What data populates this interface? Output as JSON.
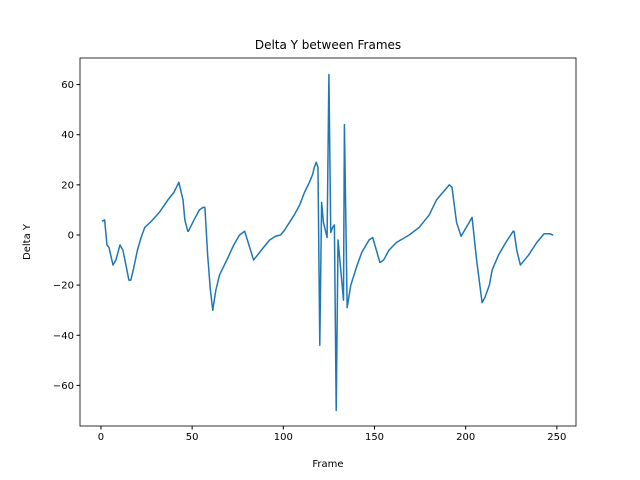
{
  "chart_data": {
    "type": "line",
    "title": "Delta Y between Frames",
    "x_label": "Frame",
    "y_label": "Delta Y",
    "x": [
      0.5,
      2,
      3.3,
      4.4,
      6.6,
      8.2,
      10.4,
      12,
      13.7,
      15.3,
      16.4,
      18,
      20,
      22,
      24,
      27,
      32,
      36.7,
      40,
      42.7,
      45,
      46,
      47.6,
      48,
      51,
      54,
      56,
      57,
      58.5,
      60,
      61.3,
      63,
      65,
      69,
      72.8,
      76,
      78.8,
      82,
      83.7,
      88,
      92.5,
      95.7,
      98.5,
      100.7,
      106,
      109,
      111.6,
      114.3,
      116,
      117,
      118,
      119,
      120,
      121,
      122,
      124,
      125,
      126,
      127,
      128,
      129,
      130,
      133,
      133.5,
      135,
      137,
      140.5,
      143,
      147,
      149,
      151,
      153,
      155,
      158,
      162,
      169,
      174.5,
      180,
      184,
      191,
      192.5,
      195,
      197.5,
      199.5,
      203.5,
      206,
      209,
      210.5,
      213,
      214.5,
      218,
      222,
      226,
      226.5,
      228,
      230,
      234.5,
      239,
      243,
      246,
      248
    ],
    "series": [
      {
        "name": "Delta Y",
        "color": "#1f77b4",
        "values": [
          5.5,
          6,
          -4,
          -5,
          -12,
          -10,
          -4,
          -6,
          -12,
          -18,
          -18,
          -13,
          -6,
          -1,
          3,
          5,
          9,
          14,
          17,
          21,
          14,
          6,
          1.5,
          1.5,
          6,
          10,
          11,
          11,
          -8,
          -22,
          -30,
          -22,
          -16,
          -10,
          -4,
          0,
          1.5,
          -6,
          -10,
          -6,
          -2,
          -0.5,
          0,
          2,
          8,
          12,
          17,
          21,
          24,
          27,
          29,
          27,
          -44,
          13,
          5,
          -1,
          64,
          1,
          3,
          4,
          -70,
          -2,
          -26,
          44,
          -29,
          -20,
          -12,
          -7,
          -2,
          -1,
          -6,
          -11,
          -10,
          -6,
          -3,
          0,
          3,
          8,
          14,
          20,
          19,
          5,
          -0.5,
          2,
          7,
          -10,
          -27,
          -25,
          -20,
          -14,
          -8,
          -3,
          1.5,
          1.5,
          -6,
          -12,
          -8,
          -3,
          0.5,
          0.5,
          0
        ]
      }
    ],
    "xlim": [
      -11.5,
      260.5
    ],
    "ylim": [
      -76.2,
      70.6
    ],
    "xticks": [
      0,
      50,
      100,
      150,
      200,
      250
    ],
    "yticks": [
      {
        "value": -60,
        "label": "−60"
      },
      {
        "value": -40,
        "label": "−40"
      },
      {
        "value": -20,
        "label": "−20"
      },
      0,
      20,
      40,
      60
    ],
    "grid": false
  }
}
